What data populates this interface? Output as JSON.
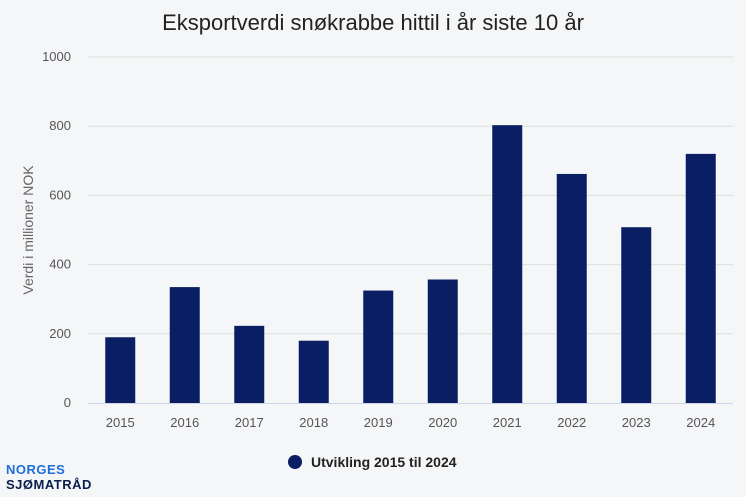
{
  "logo": {
    "line1": "NORGES",
    "line2": "SJØMATRÅD"
  },
  "colors": {
    "bar": "#0a1f63",
    "grid": "#dddddd",
    "axis": "#ccd6eb"
  },
  "chart_data": {
    "type": "bar",
    "title": "Eksportverdi snøkrabbe hittil i år siste 10 år",
    "xlabel": "",
    "ylabel": "Verdi i millioner NOK",
    "categories": [
      "2015",
      "2016",
      "2017",
      "2018",
      "2019",
      "2020",
      "2021",
      "2022",
      "2023",
      "2024"
    ],
    "series": [
      {
        "name": "Utvikling 2015 til 2024",
        "values": [
          190,
          335,
          223,
          180,
          325,
          357,
          803,
          662,
          508,
          720
        ]
      }
    ],
    "ylim": [
      0,
      1000
    ],
    "yticks": [
      0,
      200,
      400,
      600,
      800,
      1000
    ],
    "grid": true,
    "legend": "bottom-center"
  }
}
